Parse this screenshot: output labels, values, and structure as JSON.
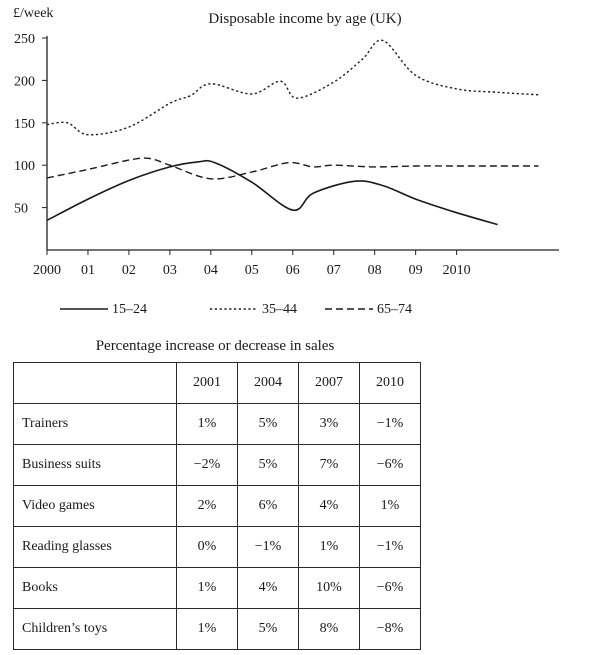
{
  "chart_data": [
    {
      "type": "line",
      "title": "Disposable income by age (UK)",
      "ylabel": "£/week",
      "ylim": [
        0,
        250
      ],
      "yticks": [
        50,
        100,
        150,
        200,
        250
      ],
      "xlim": [
        2000,
        2012.5
      ],
      "xticks": [
        2000,
        2001,
        2002,
        2003,
        2004,
        2005,
        2006,
        2007,
        2008,
        2009,
        2010
      ],
      "xtick_labels": [
        "2000",
        "01",
        "02",
        "03",
        "04",
        "05",
        "06",
        "07",
        "08",
        "09",
        "2010"
      ],
      "grid": false,
      "legend": "bottom",
      "series": [
        {
          "name": "15–24",
          "style": "solid",
          "x": [
            2000,
            2001,
            2002,
            2003,
            2003.7,
            2004.1,
            2005,
            2006,
            2006.5,
            2007.5,
            2008.2,
            2009,
            2010,
            2011
          ],
          "values": [
            35,
            60,
            82,
            98,
            104,
            103,
            80,
            47,
            67,
            81,
            76,
            60,
            44,
            30
          ]
        },
        {
          "name": "35–44",
          "style": "dotted",
          "x": [
            2000,
            2000.5,
            2001,
            2002,
            2003,
            2003.5,
            2004,
            2005,
            2005.7,
            2006.1,
            2007,
            2007.7,
            2008.2,
            2009,
            2010,
            2011,
            2012
          ],
          "values": [
            148,
            150,
            136,
            145,
            173,
            182,
            196,
            184,
            199,
            179,
            198,
            225,
            247,
            206,
            190,
            186,
            183
          ]
        },
        {
          "name": "65–74",
          "style": "dashed",
          "x": [
            2000,
            2001,
            2002,
            2002.5,
            2003,
            2004,
            2005,
            2005.9,
            2006.5,
            2007,
            2008,
            2009,
            2010,
            2011,
            2012
          ],
          "values": [
            85,
            95,
            106,
            108,
            100,
            84,
            92,
            103,
            98,
            100,
            98,
            99,
            99,
            99,
            99
          ]
        }
      ]
    },
    {
      "type": "table",
      "title": "Percentage increase or decrease in sales",
      "columns": [
        "2001",
        "2004",
        "2007",
        "2010"
      ],
      "rows": [
        {
          "label": "Trainers",
          "values": [
            "1%",
            "5%",
            "3%",
            "−1%"
          ]
        },
        {
          "label": "Business suits",
          "values": [
            "−2%",
            "5%",
            "7%",
            "−6%"
          ]
        },
        {
          "label": "Video games",
          "values": [
            "2%",
            "6%",
            "4%",
            "1%"
          ]
        },
        {
          "label": "Reading glasses",
          "values": [
            "0%",
            "−1%",
            "1%",
            "−1%"
          ]
        },
        {
          "label": "Books",
          "values": [
            "1%",
            "4%",
            "10%",
            "−6%"
          ]
        },
        {
          "label": "Children’s toys",
          "values": [
            "1%",
            "5%",
            "8%",
            "−8%"
          ]
        }
      ]
    }
  ]
}
